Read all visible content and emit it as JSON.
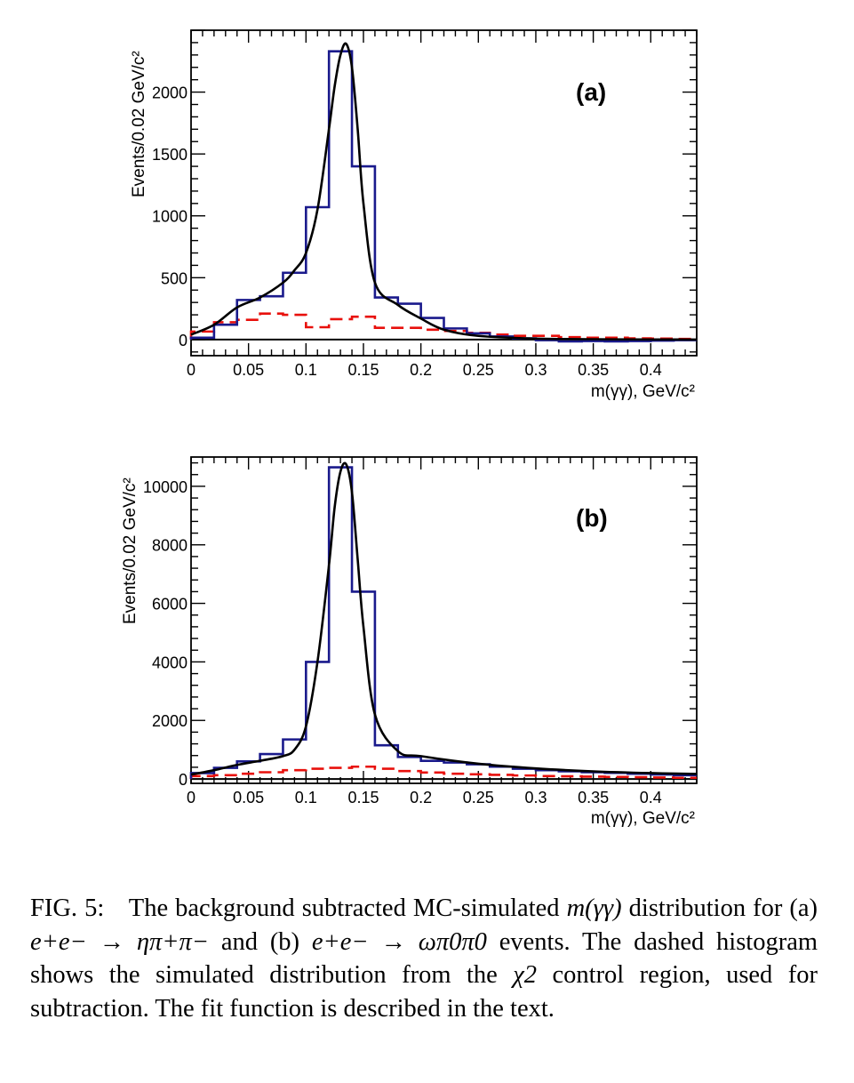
{
  "chart_data": [
    {
      "type": "histogram",
      "panel_label": "(a)",
      "xlabel": "m(γγ), GeV/c²",
      "ylabel": "Events/0.02 GeV/c²",
      "xlim": [
        0,
        0.44
      ],
      "ylim": [
        -130,
        2500
      ],
      "x_ticks": [
        "0",
        "0.05",
        "0.1",
        "0.15",
        "0.2",
        "0.25",
        "0.3",
        "0.35",
        "0.4"
      ],
      "y_ticks": [
        "0",
        "500",
        "1000",
        "1500",
        "2000"
      ],
      "grid": false,
      "legend": "none",
      "bin_width": 0.02,
      "bin_edges": [
        0,
        0.02,
        0.04,
        0.06,
        0.08,
        0.1,
        0.12,
        0.14,
        0.16,
        0.18,
        0.2,
        0.22,
        0.24,
        0.26,
        0.28,
        0.3,
        0.32,
        0.34,
        0.36,
        0.38,
        0.4,
        0.42,
        0.44
      ],
      "series": [
        {
          "style": "solid-step",
          "values": [
            15,
            120,
            320,
            350,
            540,
            1070,
            2330,
            1400,
            340,
            290,
            175,
            90,
            50,
            25,
            10,
            -5,
            -15,
            -12,
            -15,
            -12,
            -8,
            -5
          ]
        },
        {
          "style": "dashed-step",
          "values": [
            65,
            140,
            160,
            210,
            200,
            100,
            165,
            185,
            95,
            95,
            80,
            70,
            55,
            40,
            30,
            30,
            20,
            15,
            15,
            10,
            8,
            5
          ]
        },
        {
          "style": "fit-curve",
          "x": [
            0,
            0.02,
            0.04,
            0.06,
            0.08,
            0.09,
            0.1,
            0.11,
            0.12,
            0.125,
            0.13,
            0.135,
            0.14,
            0.145,
            0.15,
            0.16,
            0.18,
            0.2,
            0.22,
            0.25,
            0.3,
            0.35,
            0.4,
            0.44
          ],
          "y": [
            40,
            120,
            260,
            340,
            460,
            560,
            700,
            1050,
            1700,
            2050,
            2300,
            2390,
            2200,
            1700,
            1100,
            460,
            280,
            170,
            80,
            30,
            8,
            3,
            1,
            0
          ]
        }
      ]
    },
    {
      "type": "histogram",
      "panel_label": "(b)",
      "xlabel": "m(γγ), GeV/c²",
      "ylabel": "Events/0.02 GeV/c²",
      "xlim": [
        0,
        0.44
      ],
      "ylim": [
        -150,
        11000
      ],
      "x_ticks": [
        "0",
        "0.05",
        "0.1",
        "0.15",
        "0.2",
        "0.25",
        "0.3",
        "0.35",
        "0.4"
      ],
      "y_ticks": [
        "0",
        "2000",
        "4000",
        "6000",
        "8000",
        "10000"
      ],
      "grid": false,
      "legend": "none",
      "bin_width": 0.02,
      "bin_edges": [
        0,
        0.02,
        0.04,
        0.06,
        0.08,
        0.1,
        0.12,
        0.14,
        0.16,
        0.18,
        0.2,
        0.22,
        0.24,
        0.26,
        0.28,
        0.3,
        0.32,
        0.34,
        0.36,
        0.38,
        0.4,
        0.42,
        0.44
      ],
      "series": [
        {
          "style": "solid-step",
          "values": [
            200,
            380,
            600,
            850,
            1350,
            4000,
            10650,
            6400,
            1150,
            750,
            620,
            560,
            500,
            420,
            350,
            300,
            260,
            230,
            210,
            180,
            150,
            130
          ]
        },
        {
          "style": "dashed-step",
          "values": [
            100,
            130,
            180,
            230,
            300,
            350,
            380,
            420,
            350,
            270,
            220,
            180,
            160,
            140,
            120,
            100,
            90,
            80,
            70,
            60,
            50,
            40
          ]
        },
        {
          "style": "fit-curve",
          "x": [
            0,
            0.02,
            0.04,
            0.06,
            0.08,
            0.09,
            0.1,
            0.11,
            0.12,
            0.125,
            0.13,
            0.135,
            0.14,
            0.145,
            0.15,
            0.16,
            0.18,
            0.2,
            0.25,
            0.3,
            0.35,
            0.4,
            0.44
          ],
          "y": [
            150,
            300,
            480,
            620,
            780,
            1000,
            1800,
            4000,
            7300,
            9300,
            10500,
            10750,
            9800,
            7500,
            5200,
            2200,
            950,
            780,
            520,
            360,
            260,
            200,
            170
          ]
        }
      ]
    }
  ],
  "caption": {
    "label": "FIG. 5:",
    "text_1": "The background subtracted MC-simulated",
    "expr_1": "m(γγ)",
    "text_2": "distribution for (a)",
    "expr_2": "e+e− → ηπ+π−",
    "text_3": "and (b)",
    "expr_3": "e+e− → ωπ0π0",
    "text_4": "events. The dashed histogram shows the simulated distribution from the",
    "expr_4": "χ2",
    "text_5": "control region, used for subtraction. The fit function is described in the text."
  },
  "colors": {
    "solid_histogram": "#1a1a8c",
    "dashed_histogram": "#e8100c",
    "fit_curve": "#000000",
    "axes": "#000000"
  }
}
